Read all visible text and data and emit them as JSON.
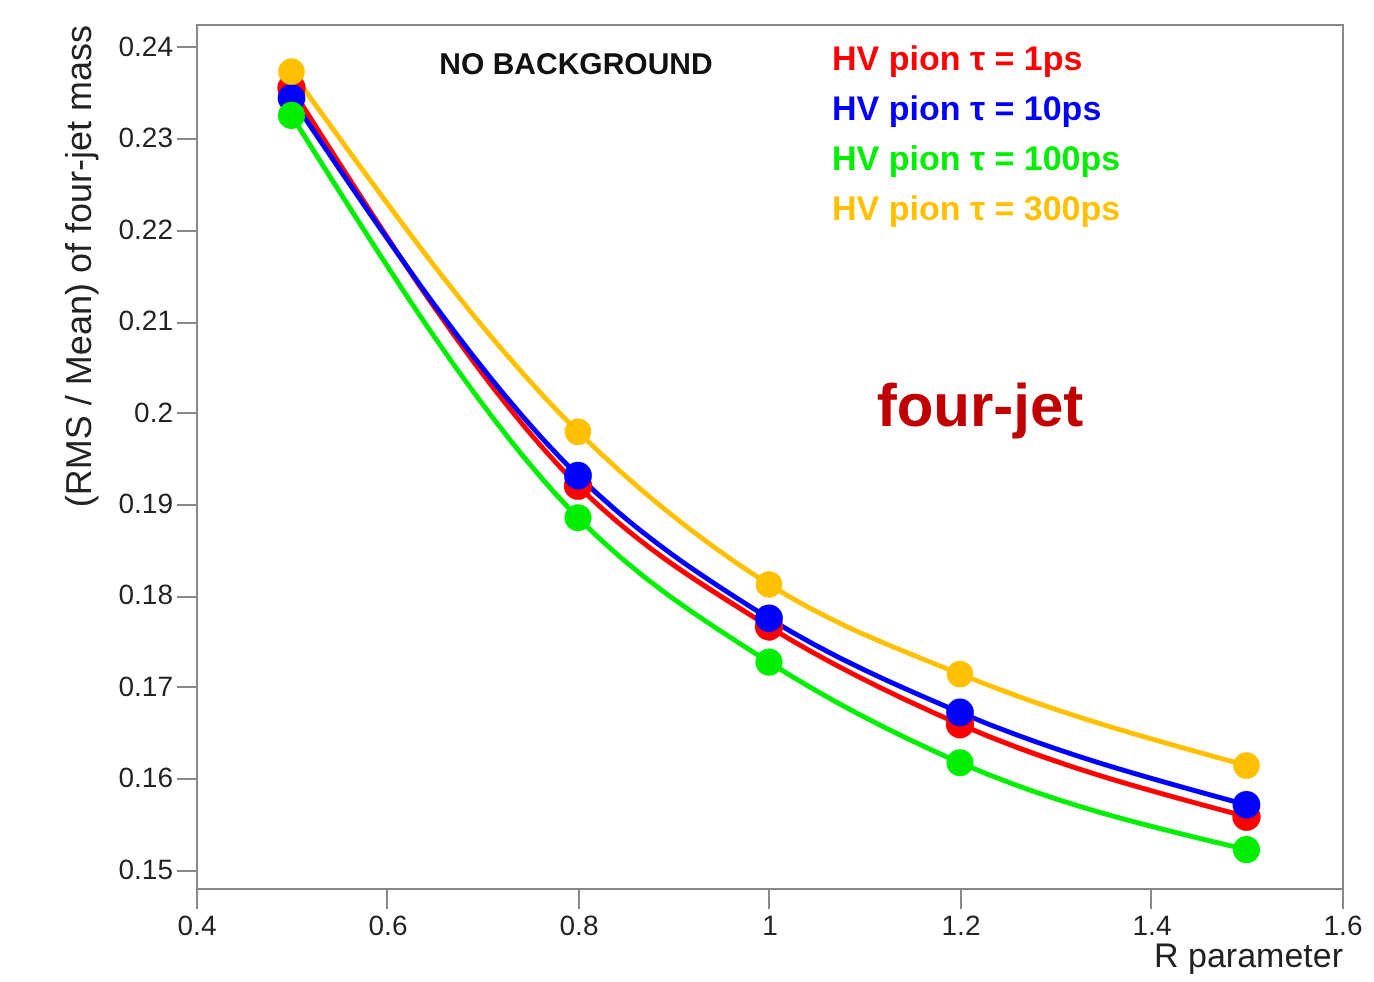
{
  "chart_data": {
    "type": "line",
    "xlabel": "R parameter",
    "ylabel": "(RMS / Mean) of four-jet mass",
    "x": [
      0.5,
      0.8,
      1,
      1.2,
      1.5
    ],
    "series": [
      {
        "name": "HV pion τ = 1ps",
        "color": "#ff0000",
        "values": [
          0.2355,
          0.192,
          0.1766,
          0.1659,
          0.1558
        ]
      },
      {
        "name": "HV pion τ = 10ps",
        "color": "#0000ff",
        "values": [
          0.2344,
          0.1931,
          0.1775,
          0.1672,
          0.1571
        ]
      },
      {
        "name": "HV pion τ = 100ps",
        "color": "#00ee00",
        "values": [
          0.2325,
          0.1885,
          0.1727,
          0.1617,
          0.1522
        ]
      },
      {
        "name": "HV pion τ = 300ps",
        "color": "#ffc000",
        "values": [
          0.2373,
          0.1979,
          0.1812,
          0.1714,
          0.1614
        ]
      }
    ],
    "xlim": [
      0.4,
      1.6
    ],
    "xticks": [
      0.4,
      0.6,
      0.8,
      1,
      1.2,
      1.4,
      1.6
    ],
    "ylim": [
      0.148,
      0.2425
    ],
    "yticks": [
      0.15,
      0.16,
      0.17,
      0.18,
      0.19,
      0.2,
      0.21,
      0.22,
      0.23,
      0.24
    ],
    "annotations": [
      "NO BACKGROUND",
      "four-jet"
    ],
    "legend": "top right",
    "marker": "circle",
    "line_style": "solid",
    "grid": false
  }
}
